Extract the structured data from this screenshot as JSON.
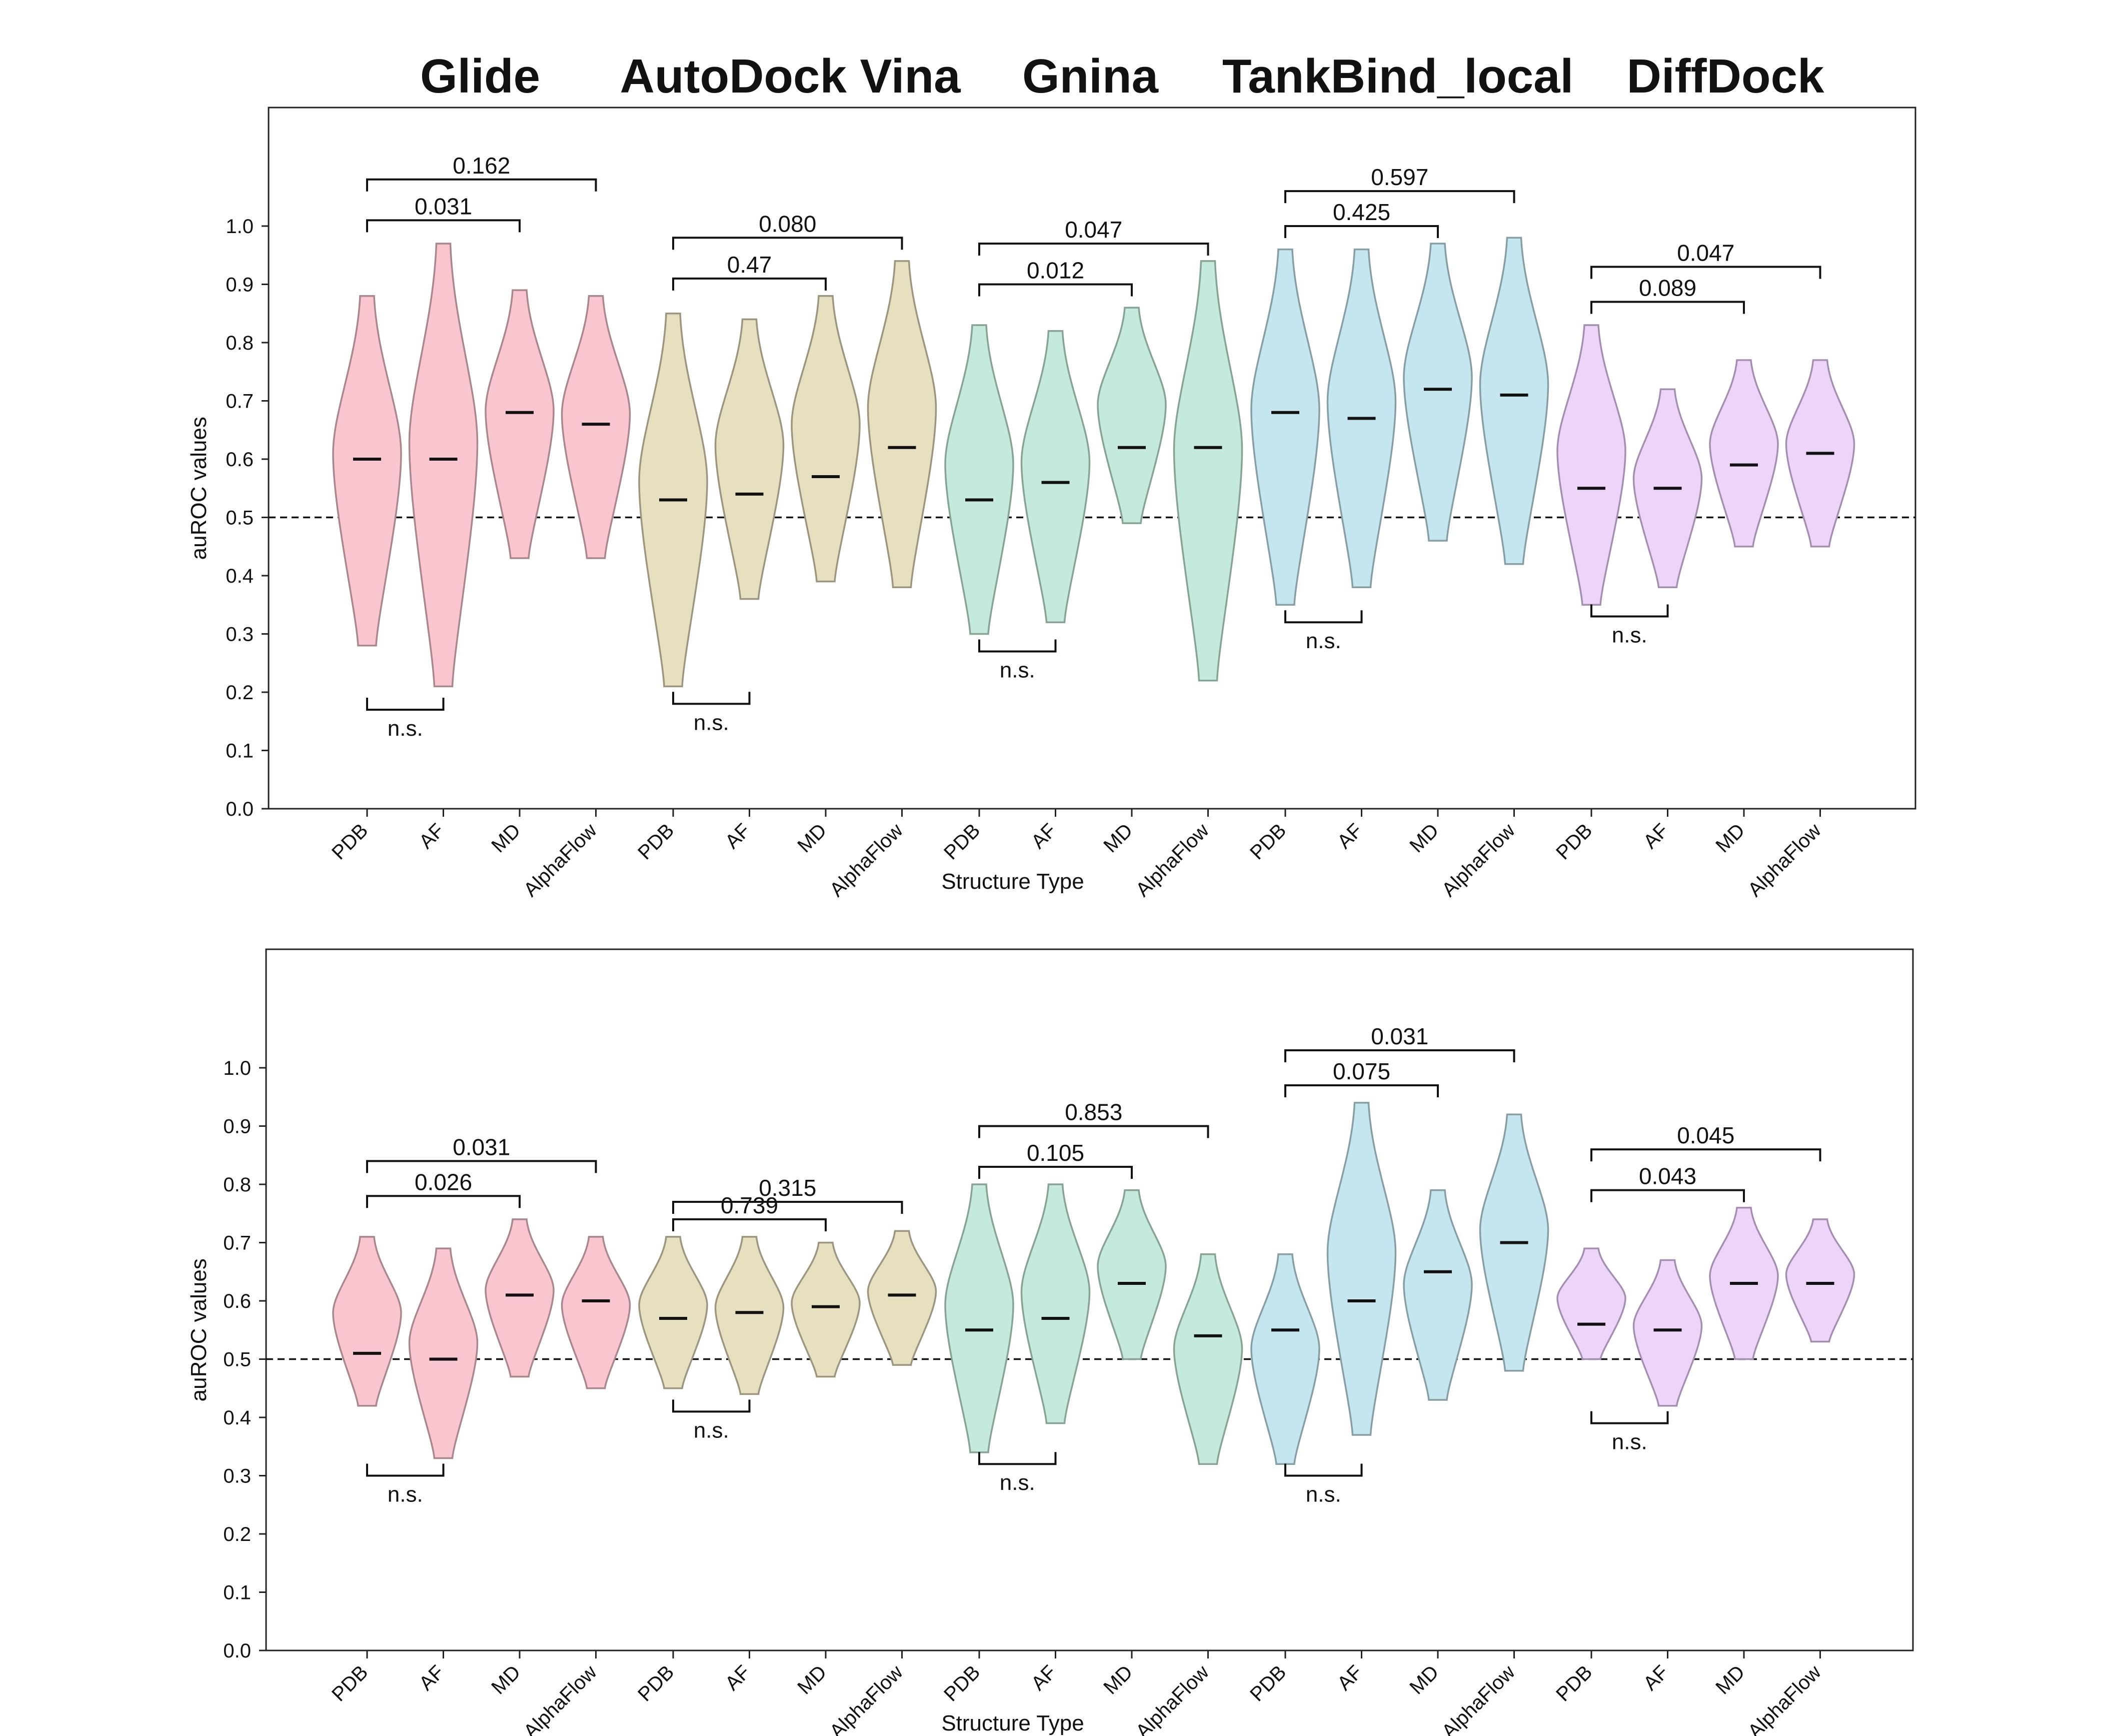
{
  "chart_data": {
    "type": "violin",
    "groups": [
      {
        "name": "Glide",
        "color": "#F9C6CF",
        "stroke": "#A8878D"
      },
      {
        "name": "AutoDock Vina",
        "color": "#E6DFC0",
        "stroke": "#9C9680"
      },
      {
        "name": "Gnina",
        "color": "#C5E9DA",
        "stroke": "#87A395"
      },
      {
        "name": "TankBind_local",
        "color": "#C6E6EF",
        "stroke": "#879EA5"
      },
      {
        "name": "DiffDock",
        "color": "#EDD5FA",
        "stroke": "#A48FB0"
      }
    ],
    "categories": [
      "PDB",
      "AF",
      "MD",
      "AlphaFlow",
      "PDB",
      "AF",
      "MD",
      "AlphaFlow",
      "PDB",
      "AF",
      "MD",
      "AlphaFlow",
      "PDB",
      "AF",
      "MD",
      "AlphaFlow",
      "PDB",
      "AF",
      "MD",
      "AlphaFlow"
    ],
    "xlabel": "Structure Type",
    "ylabel": "auROC values",
    "ylim": [
      0.0,
      1.1
    ],
    "yticks": [
      "0.0",
      "0.1",
      "0.2",
      "0.3",
      "0.4",
      "0.5",
      "0.6",
      "0.7",
      "0.8",
      "0.9",
      "1.0"
    ],
    "reference_line": 0.5,
    "panels": [
      {
        "violins": [
          {
            "min": 0.28,
            "max": 0.88,
            "median": 0.6
          },
          {
            "min": 0.21,
            "max": 0.97,
            "median": 0.6
          },
          {
            "min": 0.43,
            "max": 0.89,
            "median": 0.68
          },
          {
            "min": 0.43,
            "max": 0.88,
            "median": 0.66
          },
          {
            "min": 0.21,
            "max": 0.85,
            "median": 0.53
          },
          {
            "min": 0.36,
            "max": 0.84,
            "median": 0.54
          },
          {
            "min": 0.39,
            "max": 0.88,
            "median": 0.57
          },
          {
            "min": 0.38,
            "max": 0.94,
            "median": 0.62
          },
          {
            "min": 0.3,
            "max": 0.83,
            "median": 0.53
          },
          {
            "min": 0.32,
            "max": 0.82,
            "median": 0.56
          },
          {
            "min": 0.49,
            "max": 0.86,
            "median": 0.62
          },
          {
            "min": 0.22,
            "max": 0.94,
            "median": 0.62
          },
          {
            "min": 0.35,
            "max": 0.96,
            "median": 0.68
          },
          {
            "min": 0.38,
            "max": 0.96,
            "median": 0.67
          },
          {
            "min": 0.46,
            "max": 0.97,
            "median": 0.72
          },
          {
            "min": 0.42,
            "max": 0.98,
            "median": 0.71
          },
          {
            "min": 0.35,
            "max": 0.83,
            "median": 0.55
          },
          {
            "min": 0.38,
            "max": 0.72,
            "median": 0.55
          },
          {
            "min": 0.45,
            "max": 0.77,
            "median": 0.59
          },
          {
            "min": 0.45,
            "max": 0.77,
            "median": 0.61
          }
        ],
        "annotations": [
          {
            "label": "0.162",
            "from": 0,
            "to": 3,
            "y": 1.08,
            "side": "top"
          },
          {
            "label": "0.031",
            "from": 0,
            "to": 2,
            "y": 1.01,
            "side": "top"
          },
          {
            "label": "n.s.",
            "from": 0,
            "to": 1,
            "y": 0.17,
            "side": "bottom"
          },
          {
            "label": "0.080",
            "from": 4,
            "to": 7,
            "y": 0.98,
            "side": "top"
          },
          {
            "label": "0.47",
            "from": 4,
            "to": 6,
            "y": 0.91,
            "side": "top"
          },
          {
            "label": "n.s.",
            "from": 4,
            "to": 5,
            "y": 0.18,
            "side": "bottom"
          },
          {
            "label": "0.047",
            "from": 8,
            "to": 11,
            "y": 0.97,
            "side": "top"
          },
          {
            "label": "0.012",
            "from": 8,
            "to": 10,
            "y": 0.9,
            "side": "top"
          },
          {
            "label": "n.s.",
            "from": 8,
            "to": 9,
            "y": 0.27,
            "side": "bottom"
          },
          {
            "label": "0.597",
            "from": 12,
            "to": 15,
            "y": 1.06,
            "side": "top"
          },
          {
            "label": "0.425",
            "from": 12,
            "to": 14,
            "y": 1.0,
            "side": "top"
          },
          {
            "label": "n.s.",
            "from": 12,
            "to": 13,
            "y": 0.32,
            "side": "bottom"
          },
          {
            "label": "0.047",
            "from": 16,
            "to": 19,
            "y": 0.93,
            "side": "top"
          },
          {
            "label": "0.089",
            "from": 16,
            "to": 18,
            "y": 0.87,
            "side": "top"
          },
          {
            "label": "n.s.",
            "from": 16,
            "to": 17,
            "y": 0.33,
            "side": "bottom"
          }
        ]
      },
      {
        "violins": [
          {
            "min": 0.42,
            "max": 0.71,
            "median": 0.51
          },
          {
            "min": 0.33,
            "max": 0.69,
            "median": 0.5
          },
          {
            "min": 0.47,
            "max": 0.74,
            "median": 0.61
          },
          {
            "min": 0.45,
            "max": 0.71,
            "median": 0.6
          },
          {
            "min": 0.45,
            "max": 0.71,
            "median": 0.57
          },
          {
            "min": 0.44,
            "max": 0.71,
            "median": 0.58
          },
          {
            "min": 0.47,
            "max": 0.7,
            "median": 0.59
          },
          {
            "min": 0.49,
            "max": 0.72,
            "median": 0.61
          },
          {
            "min": 0.34,
            "max": 0.8,
            "median": 0.55
          },
          {
            "min": 0.39,
            "max": 0.8,
            "median": 0.57
          },
          {
            "min": 0.5,
            "max": 0.79,
            "median": 0.63
          },
          {
            "min": 0.32,
            "max": 0.68,
            "median": 0.54
          },
          {
            "min": 0.32,
            "max": 0.68,
            "median": 0.55
          },
          {
            "min": 0.37,
            "max": 0.94,
            "median": 0.6
          },
          {
            "min": 0.43,
            "max": 0.79,
            "median": 0.65
          },
          {
            "min": 0.48,
            "max": 0.92,
            "median": 0.7
          },
          {
            "min": 0.5,
            "max": 0.69,
            "median": 0.56
          },
          {
            "min": 0.42,
            "max": 0.67,
            "median": 0.55
          },
          {
            "min": 0.5,
            "max": 0.76,
            "median": 0.63
          },
          {
            "min": 0.53,
            "max": 0.74,
            "median": 0.63
          }
        ],
        "annotations": [
          {
            "label": "0.031",
            "from": 0,
            "to": 3,
            "y": 0.84,
            "side": "top"
          },
          {
            "label": "0.026",
            "from": 0,
            "to": 2,
            "y": 0.78,
            "side": "top"
          },
          {
            "label": "n.s.",
            "from": 0,
            "to": 1,
            "y": 0.3,
            "side": "bottom"
          },
          {
            "label": "0.315",
            "from": 4,
            "to": 7,
            "y": 0.77,
            "side": "top"
          },
          {
            "label": "0.739",
            "from": 4,
            "to": 6,
            "y": 0.74,
            "side": "top"
          },
          {
            "label": "n.s.",
            "from": 4,
            "to": 5,
            "y": 0.41,
            "side": "bottom"
          },
          {
            "label": "0.853",
            "from": 8,
            "to": 11,
            "y": 0.9,
            "side": "top"
          },
          {
            "label": "0.105",
            "from": 8,
            "to": 10,
            "y": 0.83,
            "side": "top"
          },
          {
            "label": "n.s.",
            "from": 8,
            "to": 9,
            "y": 0.32,
            "side": "bottom"
          },
          {
            "label": "0.031",
            "from": 12,
            "to": 15,
            "y": 1.03,
            "side": "top"
          },
          {
            "label": "0.075",
            "from": 12,
            "to": 14,
            "y": 0.97,
            "side": "top"
          },
          {
            "label": "n.s.",
            "from": 12,
            "to": 13,
            "y": 0.3,
            "side": "bottom"
          },
          {
            "label": "0.045",
            "from": 16,
            "to": 19,
            "y": 0.86,
            "side": "top"
          },
          {
            "label": "0.043",
            "from": 16,
            "to": 18,
            "y": 0.79,
            "side": "top"
          },
          {
            "label": "n.s.",
            "from": 16,
            "to": 17,
            "y": 0.39,
            "side": "bottom"
          }
        ]
      }
    ]
  }
}
